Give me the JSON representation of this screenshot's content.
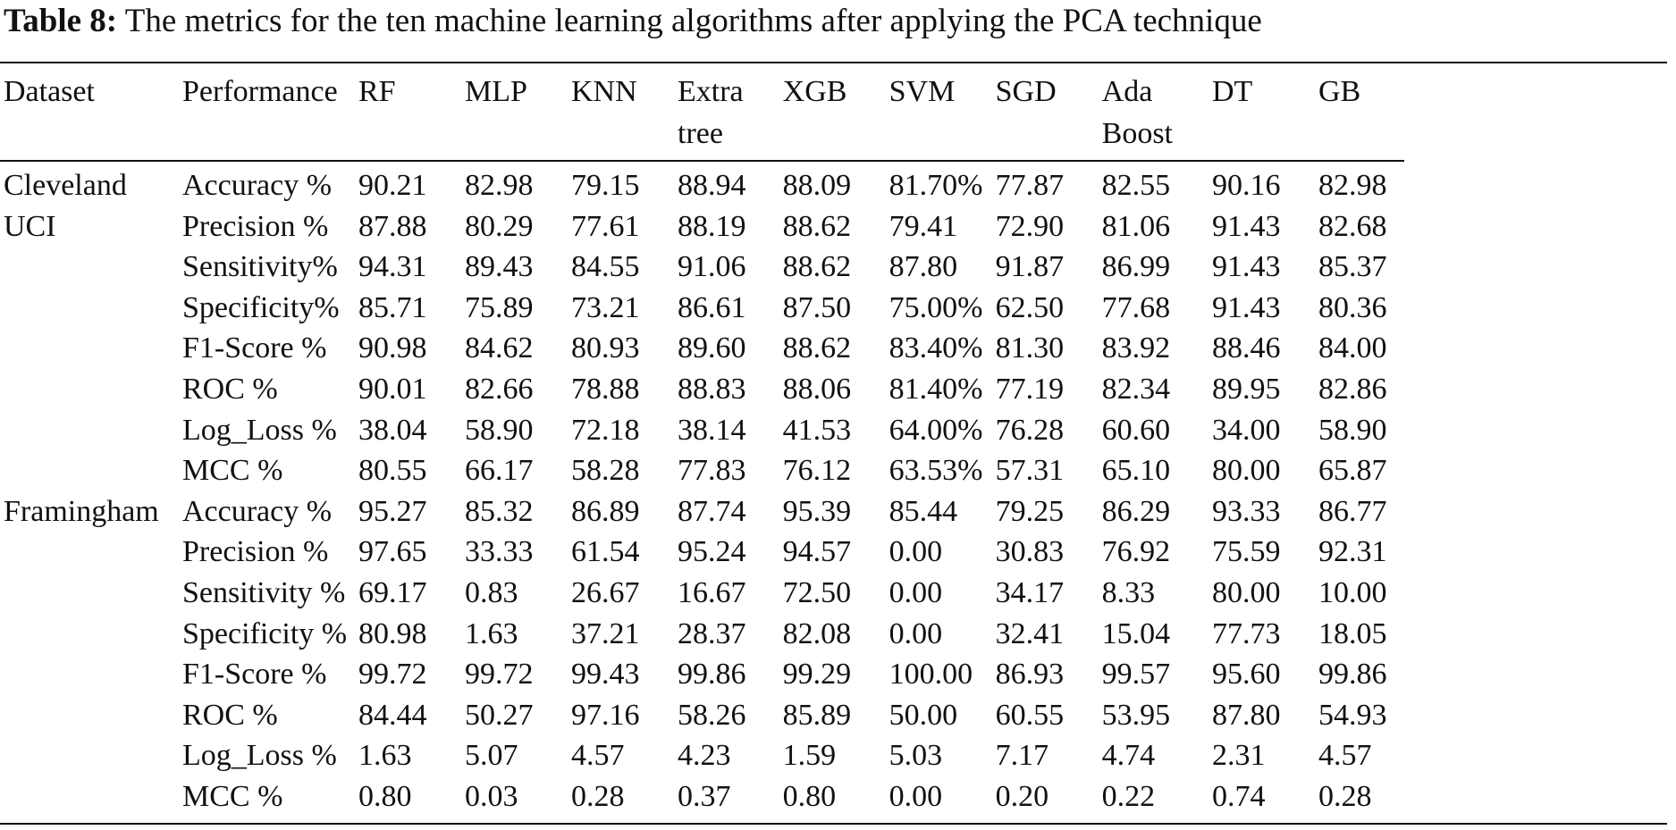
{
  "caption": {
    "label": "Table 8:",
    "text": "The metrics for the ten machine learning algorithms after applying the PCA technique"
  },
  "columns": [
    "Dataset",
    "Performance",
    "RF",
    "MLP",
    "KNN",
    "Extra tree",
    "XGB",
    "SVM",
    "SGD",
    "Ada Boost",
    "DT",
    "GB"
  ],
  "groups": [
    {
      "dataset": "Cleveland UCI",
      "dataset_lines": [
        "Cleveland",
        "UCI"
      ],
      "rows": [
        {
          "metric": "Accuracy %",
          "values": [
            "90.21",
            "82.98",
            "79.15",
            "88.94",
            "88.09",
            "81.70%",
            "77.87",
            "82.55",
            "90.16",
            "82.98"
          ],
          "bold": [
            0
          ]
        },
        {
          "metric": "Precision %",
          "values": [
            "87.88",
            "80.29",
            "77.61",
            "88.19",
            "88.62",
            "79.41",
            "72.90",
            "81.06",
            "91.43",
            "82.68"
          ],
          "bold": [
            8
          ]
        },
        {
          "metric": "Sensitivity%",
          "values": [
            "94.31",
            "89.43",
            "84.55",
            "91.06",
            "88.62",
            "87.80",
            "91.87",
            "86.99",
            "91.43",
            "85.37"
          ],
          "bold": [
            0
          ]
        },
        {
          "metric": "Specificity%",
          "values": [
            "85.71",
            "75.89",
            "73.21",
            "86.61",
            "87.50",
            "75.00%",
            "62.50",
            "77.68",
            "91.43",
            "80.36"
          ],
          "bold": [
            4
          ]
        },
        {
          "metric": "F1-Score %",
          "values": [
            "90.98",
            "84.62",
            "80.93",
            "89.60",
            "88.62",
            "83.40%",
            "81.30",
            "83.92",
            "88.46",
            "84.00"
          ],
          "bold": [
            0
          ]
        },
        {
          "metric": "ROC %",
          "values": [
            "90.01",
            "82.66",
            "78.88",
            "88.83",
            "88.06",
            "81.40%",
            "77.19",
            "82.34",
            "89.95",
            "82.86"
          ],
          "bold": [
            0
          ]
        },
        {
          "metric": "Log_Loss %",
          "values": [
            "38.04",
            "58.90",
            "72.18",
            "38.14",
            "41.53",
            "64.00%",
            "76.28",
            "60.60",
            "34.00",
            "58.90"
          ],
          "bold": [
            8
          ]
        },
        {
          "metric": "MCC %",
          "values": [
            "80.55",
            "66.17",
            "58.28",
            "77.83",
            "76.12",
            "63.53%",
            "57.31",
            "65.10",
            "80.00",
            "65.87"
          ],
          "bold": [
            0
          ]
        }
      ]
    },
    {
      "dataset": "Framingham",
      "dataset_lines": [
        "Framingham"
      ],
      "rows": [
        {
          "metric": "Accuracy %",
          "values": [
            "95.27",
            "85.32",
            "86.89",
            "87.74",
            "95.39",
            "85.44",
            "79.25",
            "86.29",
            "93.33",
            "86.77"
          ],
          "bold": [
            4
          ]
        },
        {
          "metric": "Precision %",
          "values": [
            "97.65",
            "33.33",
            "61.54",
            "95.24",
            "94.57",
            "0.00",
            "30.83",
            "76.92",
            "75.59",
            "92.31"
          ],
          "bold": [
            0
          ]
        },
        {
          "metric": "Sensitivity %",
          "values": [
            "69.17",
            "0.83",
            "26.67",
            "16.67",
            "72.50",
            "0.00",
            "34.17",
            "8.33",
            "80.00",
            "10.00"
          ],
          "bold": [
            8
          ]
        },
        {
          "metric": "Specificity %",
          "values": [
            "80.98",
            "1.63",
            "37.21",
            "28.37",
            "82.08",
            "0.00",
            "32.41",
            "15.04",
            "77.73",
            "18.05"
          ],
          "bold": [
            4
          ]
        },
        {
          "metric": "F1-Score %",
          "values": [
            "99.72",
            "99.72",
            "99.43",
            "99.86",
            "99.29",
            "100.00",
            "86.93",
            "99.57",
            "95.60",
            "99.86"
          ],
          "bold": [
            5
          ]
        },
        {
          "metric": "ROC %",
          "values": [
            "84.44",
            "50.27",
            "97.16",
            "58.26",
            "85.89",
            "50.00",
            "60.55",
            "53.95",
            "87.80",
            "54.93"
          ],
          "bold": [
            2
          ]
        },
        {
          "metric": "Log_Loss %",
          "values": [
            "1.63",
            "5.07",
            "4.57",
            "4.23",
            "1.59",
            "5.03",
            "7.17",
            "4.74",
            "2.31",
            "4.57"
          ],
          "bold": [
            4
          ]
        },
        {
          "metric": "MCC %",
          "values": [
            "0.80",
            "0.03",
            "0.28",
            "0.37",
            "0.80",
            "0.00",
            "0.20",
            "0.22",
            "0.74",
            "0.28"
          ],
          "bold": [
            0,
            4
          ]
        }
      ]
    }
  ]
}
